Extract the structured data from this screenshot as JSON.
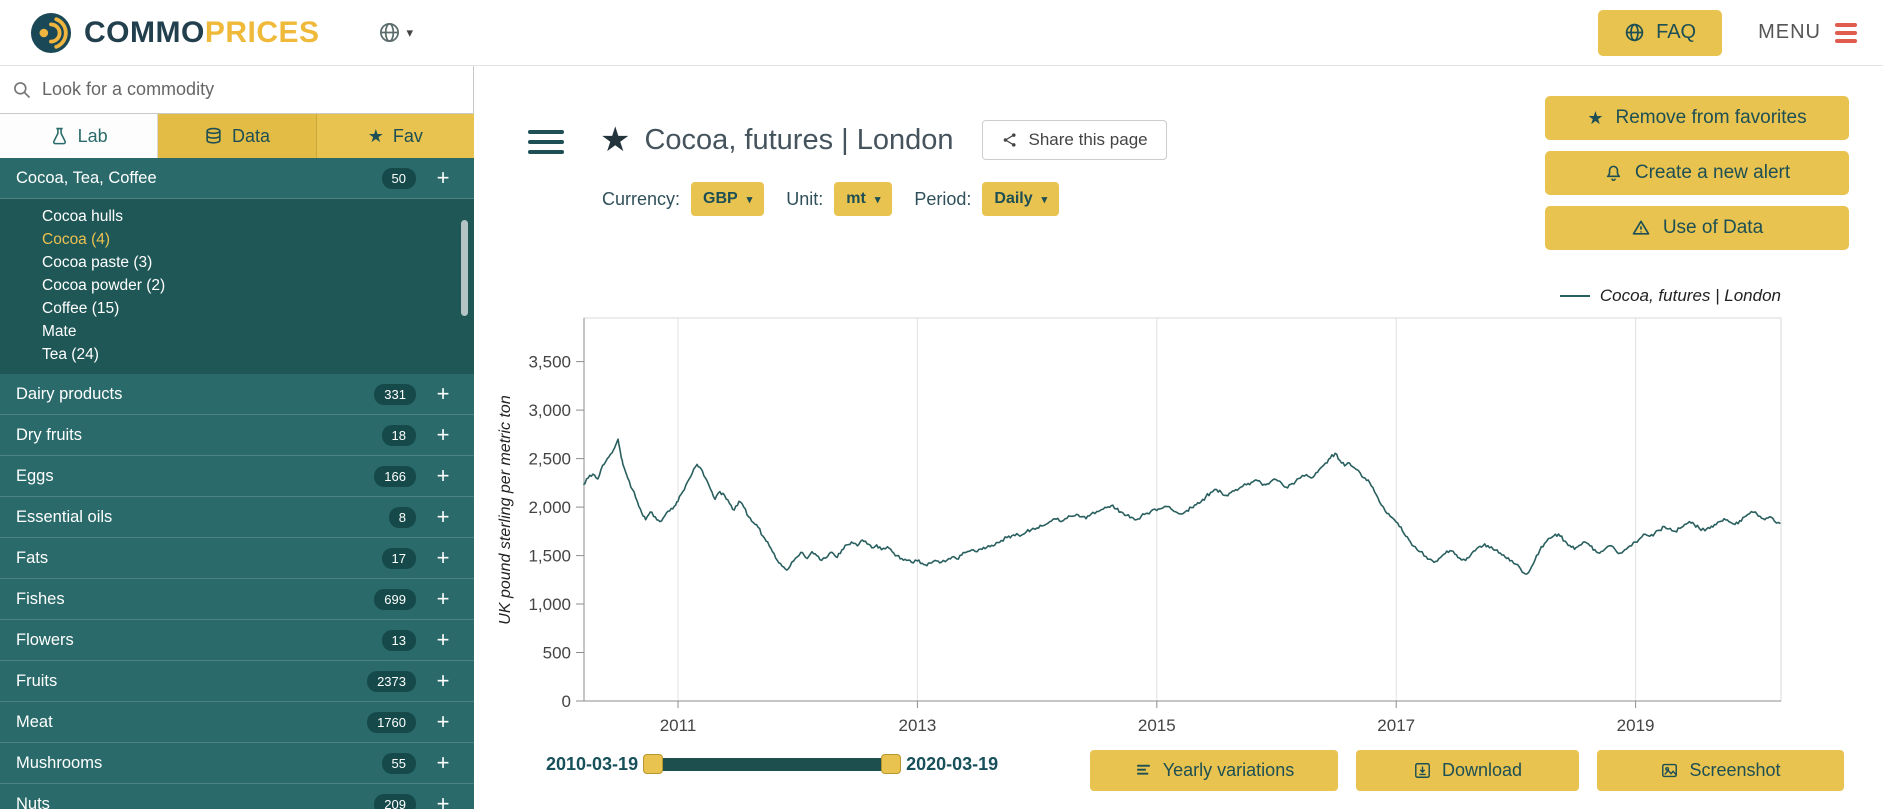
{
  "topbar": {
    "brand_commo": "COMMO",
    "brand_prices": "PRICES",
    "faq_label": "FAQ",
    "menu_label": "MENU"
  },
  "icons": {
    "star": "★",
    "plus": "+",
    "caret_down": "▾"
  },
  "colors": {
    "brand_gold": "#efb939",
    "button_gold": "#e8c34f",
    "sidebar_teal": "#2a6a6a",
    "sidebar_teal_dark": "#1f5757",
    "badge_teal": "#164a4a",
    "teal_ink": "#1d4f54",
    "chart_line": "#2a5f5f",
    "menu_red": "#e05c4f"
  },
  "sidebar": {
    "search_placeholder": "Look for a commodity",
    "tabs": [
      {
        "label": "Lab"
      },
      {
        "label": "Data"
      },
      {
        "label": "Fav"
      }
    ],
    "categories": [
      {
        "label": "Cocoa, Tea, Coffee",
        "count": "50",
        "children": [
          {
            "label": "Cocoa hulls"
          },
          {
            "label": "Cocoa (4)",
            "active": true
          },
          {
            "label": "Cocoa paste (3)"
          },
          {
            "label": "Cocoa powder (2)"
          },
          {
            "label": "Coffee (15)"
          },
          {
            "label": "Mate"
          },
          {
            "label": "Tea (24)"
          }
        ]
      },
      {
        "label": "Dairy products",
        "count": "331"
      },
      {
        "label": "Dry fruits",
        "count": "18"
      },
      {
        "label": "Eggs",
        "count": "166"
      },
      {
        "label": "Essential oils",
        "count": "8"
      },
      {
        "label": "Fats",
        "count": "17"
      },
      {
        "label": "Fishes",
        "count": "699"
      },
      {
        "label": "Flowers",
        "count": "13"
      },
      {
        "label": "Fruits",
        "count": "2373"
      },
      {
        "label": "Meat",
        "count": "1760"
      },
      {
        "label": "Mushrooms",
        "count": "55"
      },
      {
        "label": "Nuts",
        "count": "209"
      }
    ]
  },
  "main": {
    "title": "Cocoa, futures | London",
    "share_label": "Share this page",
    "controls": [
      {
        "label": "Currency:",
        "value": "GBP"
      },
      {
        "label": "Unit:",
        "value": "mt"
      },
      {
        "label": "Period:",
        "value": "Daily"
      }
    ],
    "actions": [
      {
        "label": "Remove from favorites"
      },
      {
        "label": "Create a new alert"
      },
      {
        "label": "Use of Data"
      }
    ],
    "range": {
      "start": "2010-03-19",
      "end": "2020-03-19"
    },
    "footer_buttons": [
      {
        "label": "Yearly variations"
      },
      {
        "label": "Download"
      },
      {
        "label": "Screenshot"
      }
    ]
  },
  "chart_data": {
    "type": "line",
    "legend": [
      {
        "label": "Cocoa, futures | London",
        "color": "#2a5f5f"
      }
    ],
    "ylabel": "UK pound sterling per metric ton",
    "yticks": [
      0,
      500,
      1000,
      1500,
      2000,
      2500,
      3000,
      3500
    ],
    "ytick_labels": [
      "0",
      "500",
      "1,000",
      "1,500",
      "2,000",
      "2,500",
      "3,000",
      "3,500"
    ],
    "xticks": [
      2011,
      2013,
      2015,
      2017,
      2019
    ],
    "xtick_labels": [
      "2011",
      "2013",
      "2015",
      "2017",
      "2019"
    ],
    "xlim": [
      2010.215,
      2020.215
    ],
    "ylim": [
      0,
      3950
    ],
    "grid": "vertical",
    "legend_position": "top-right",
    "points": [
      [
        2010.21,
        2230
      ],
      [
        2010.25,
        2300
      ],
      [
        2010.29,
        2340
      ],
      [
        2010.33,
        2290
      ],
      [
        2010.37,
        2430
      ],
      [
        2010.41,
        2500
      ],
      [
        2010.45,
        2560
      ],
      [
        2010.48,
        2640
      ],
      [
        2010.5,
        2700
      ],
      [
        2010.52,
        2560
      ],
      [
        2010.54,
        2440
      ],
      [
        2010.58,
        2300
      ],
      [
        2010.62,
        2180
      ],
      [
        2010.66,
        2060
      ],
      [
        2010.7,
        1930
      ],
      [
        2010.73,
        1870
      ],
      [
        2010.77,
        1950
      ],
      [
        2010.81,
        1900
      ],
      [
        2010.85,
        1850
      ],
      [
        2010.89,
        1910
      ],
      [
        2010.93,
        1960
      ],
      [
        2010.97,
        2010
      ],
      [
        2011.0,
        2060
      ],
      [
        2011.04,
        2160
      ],
      [
        2011.08,
        2260
      ],
      [
        2011.12,
        2350
      ],
      [
        2011.16,
        2440
      ],
      [
        2011.19,
        2400
      ],
      [
        2011.23,
        2300
      ],
      [
        2011.27,
        2190
      ],
      [
        2011.31,
        2080
      ],
      [
        2011.35,
        2160
      ],
      [
        2011.39,
        2120
      ],
      [
        2011.43,
        2040
      ],
      [
        2011.47,
        1970
      ],
      [
        2011.51,
        2060
      ],
      [
        2011.55,
        2000
      ],
      [
        2011.59,
        1900
      ],
      [
        2011.63,
        1840
      ],
      [
        2011.67,
        1790
      ],
      [
        2011.71,
        1700
      ],
      [
        2011.75,
        1640
      ],
      [
        2011.79,
        1540
      ],
      [
        2011.83,
        1450
      ],
      [
        2011.87,
        1390
      ],
      [
        2011.91,
        1350
      ],
      [
        2011.95,
        1430
      ],
      [
        2012.0,
        1490
      ],
      [
        2012.04,
        1530
      ],
      [
        2012.08,
        1470
      ],
      [
        2012.12,
        1540
      ],
      [
        2012.16,
        1500
      ],
      [
        2012.2,
        1450
      ],
      [
        2012.25,
        1490
      ],
      [
        2012.29,
        1530
      ],
      [
        2012.33,
        1480
      ],
      [
        2012.37,
        1560
      ],
      [
        2012.41,
        1610
      ],
      [
        2012.45,
        1640
      ],
      [
        2012.5,
        1600
      ],
      [
        2012.54,
        1660
      ],
      [
        2012.58,
        1620
      ],
      [
        2012.62,
        1580
      ],
      [
        2012.66,
        1610
      ],
      [
        2012.7,
        1560
      ],
      [
        2012.75,
        1590
      ],
      [
        2012.79,
        1540
      ],
      [
        2012.83,
        1500
      ],
      [
        2012.87,
        1470
      ],
      [
        2012.91,
        1450
      ],
      [
        2012.95,
        1430
      ],
      [
        2013.0,
        1445
      ],
      [
        2013.04,
        1420
      ],
      [
        2013.08,
        1395
      ],
      [
        2013.12,
        1425
      ],
      [
        2013.16,
        1445
      ],
      [
        2013.2,
        1430
      ],
      [
        2013.25,
        1455
      ],
      [
        2013.29,
        1485
      ],
      [
        2013.33,
        1465
      ],
      [
        2013.37,
        1505
      ],
      [
        2013.41,
        1535
      ],
      [
        2013.45,
        1555
      ],
      [
        2013.5,
        1540
      ],
      [
        2013.54,
        1565
      ],
      [
        2013.58,
        1585
      ],
      [
        2013.62,
        1605
      ],
      [
        2013.66,
        1635
      ],
      [
        2013.7,
        1655
      ],
      [
        2013.75,
        1685
      ],
      [
        2013.79,
        1705
      ],
      [
        2013.83,
        1725
      ],
      [
        2013.87,
        1710
      ],
      [
        2013.91,
        1745
      ],
      [
        2013.95,
        1765
      ],
      [
        2014.0,
        1785
      ],
      [
        2014.04,
        1805
      ],
      [
        2014.08,
        1825
      ],
      [
        2014.12,
        1855
      ],
      [
        2014.16,
        1875
      ],
      [
        2014.2,
        1850
      ],
      [
        2014.25,
        1885
      ],
      [
        2014.29,
        1905
      ],
      [
        2014.33,
        1925
      ],
      [
        2014.37,
        1900
      ],
      [
        2014.41,
        1880
      ],
      [
        2014.45,
        1925
      ],
      [
        2014.5,
        1955
      ],
      [
        2014.54,
        1975
      ],
      [
        2014.58,
        1995
      ],
      [
        2014.62,
        2015
      ],
      [
        2014.66,
        1980
      ],
      [
        2014.7,
        1950
      ],
      [
        2014.75,
        1915
      ],
      [
        2014.79,
        1895
      ],
      [
        2014.83,
        1870
      ],
      [
        2014.87,
        1905
      ],
      [
        2014.91,
        1935
      ],
      [
        2014.95,
        1955
      ],
      [
        2015.0,
        1965
      ],
      [
        2015.04,
        1985
      ],
      [
        2015.08,
        2005
      ],
      [
        2015.12,
        1980
      ],
      [
        2015.16,
        1950
      ],
      [
        2015.2,
        1930
      ],
      [
        2015.25,
        1965
      ],
      [
        2015.29,
        1995
      ],
      [
        2015.33,
        2025
      ],
      [
        2015.37,
        2055
      ],
      [
        2015.41,
        2105
      ],
      [
        2015.45,
        2150
      ],
      [
        2015.5,
        2180
      ],
      [
        2015.54,
        2150
      ],
      [
        2015.58,
        2120
      ],
      [
        2015.62,
        2150
      ],
      [
        2015.66,
        2180
      ],
      [
        2015.7,
        2205
      ],
      [
        2015.75,
        2230
      ],
      [
        2015.79,
        2255
      ],
      [
        2015.83,
        2280
      ],
      [
        2015.87,
        2250
      ],
      [
        2015.91,
        2230
      ],
      [
        2015.95,
        2260
      ],
      [
        2016.0,
        2280
      ],
      [
        2016.04,
        2250
      ],
      [
        2016.08,
        2205
      ],
      [
        2016.12,
        2235
      ],
      [
        2016.16,
        2265
      ],
      [
        2016.2,
        2300
      ],
      [
        2016.25,
        2335
      ],
      [
        2016.29,
        2300
      ],
      [
        2016.33,
        2355
      ],
      [
        2016.37,
        2405
      ],
      [
        2016.41,
        2455
      ],
      [
        2016.45,
        2505
      ],
      [
        2016.49,
        2555
      ],
      [
        2016.53,
        2480
      ],
      [
        2016.57,
        2425
      ],
      [
        2016.61,
        2455
      ],
      [
        2016.65,
        2405
      ],
      [
        2016.7,
        2350
      ],
      [
        2016.74,
        2300
      ],
      [
        2016.78,
        2250
      ],
      [
        2016.82,
        2155
      ],
      [
        2016.86,
        2055
      ],
      [
        2016.91,
        1955
      ],
      [
        2016.95,
        1905
      ],
      [
        2017.0,
        1845
      ],
      [
        2017.04,
        1795
      ],
      [
        2017.08,
        1700
      ],
      [
        2017.12,
        1640
      ],
      [
        2017.16,
        1590
      ],
      [
        2017.2,
        1540
      ],
      [
        2017.25,
        1490
      ],
      [
        2017.29,
        1460
      ],
      [
        2017.33,
        1440
      ],
      [
        2017.37,
        1480
      ],
      [
        2017.41,
        1520
      ],
      [
        2017.45,
        1550
      ],
      [
        2017.49,
        1515
      ],
      [
        2017.53,
        1475
      ],
      [
        2017.58,
        1450
      ],
      [
        2017.62,
        1500
      ],
      [
        2017.66,
        1550
      ],
      [
        2017.7,
        1595
      ],
      [
        2017.74,
        1620
      ],
      [
        2017.78,
        1580
      ],
      [
        2017.83,
        1555
      ],
      [
        2017.87,
        1525
      ],
      [
        2017.91,
        1485
      ],
      [
        2017.95,
        1445
      ],
      [
        2018.0,
        1410
      ],
      [
        2018.04,
        1360
      ],
      [
        2018.08,
        1310
      ],
      [
        2018.12,
        1355
      ],
      [
        2018.16,
        1455
      ],
      [
        2018.2,
        1555
      ],
      [
        2018.24,
        1625
      ],
      [
        2018.29,
        1680
      ],
      [
        2018.33,
        1720
      ],
      [
        2018.37,
        1700
      ],
      [
        2018.41,
        1650
      ],
      [
        2018.45,
        1605
      ],
      [
        2018.49,
        1565
      ],
      [
        2018.53,
        1605
      ],
      [
        2018.58,
        1640
      ],
      [
        2018.62,
        1600
      ],
      [
        2018.66,
        1560
      ],
      [
        2018.7,
        1525
      ],
      [
        2018.74,
        1560
      ],
      [
        2018.78,
        1600
      ],
      [
        2018.83,
        1560
      ],
      [
        2018.87,
        1525
      ],
      [
        2018.91,
        1560
      ],
      [
        2018.95,
        1600
      ],
      [
        2019.0,
        1640
      ],
      [
        2019.04,
        1680
      ],
      [
        2019.08,
        1720
      ],
      [
        2019.12,
        1700
      ],
      [
        2019.16,
        1730
      ],
      [
        2019.2,
        1760
      ],
      [
        2019.24,
        1800
      ],
      [
        2019.29,
        1780
      ],
      [
        2019.33,
        1750
      ],
      [
        2019.37,
        1780
      ],
      [
        2019.41,
        1820
      ],
      [
        2019.45,
        1850
      ],
      [
        2019.49,
        1820
      ],
      [
        2019.53,
        1785
      ],
      [
        2019.58,
        1755
      ],
      [
        2019.62,
        1780
      ],
      [
        2019.66,
        1820
      ],
      [
        2019.7,
        1850
      ],
      [
        2019.74,
        1880
      ],
      [
        2019.78,
        1850
      ],
      [
        2019.83,
        1820
      ],
      [
        2019.87,
        1860
      ],
      [
        2019.91,
        1900
      ],
      [
        2019.95,
        1930
      ],
      [
        2020.0,
        1950
      ],
      [
        2020.04,
        1905
      ],
      [
        2020.08,
        1870
      ],
      [
        2020.12,
        1900
      ],
      [
        2020.16,
        1855
      ],
      [
        2020.21,
        1830
      ]
    ]
  }
}
